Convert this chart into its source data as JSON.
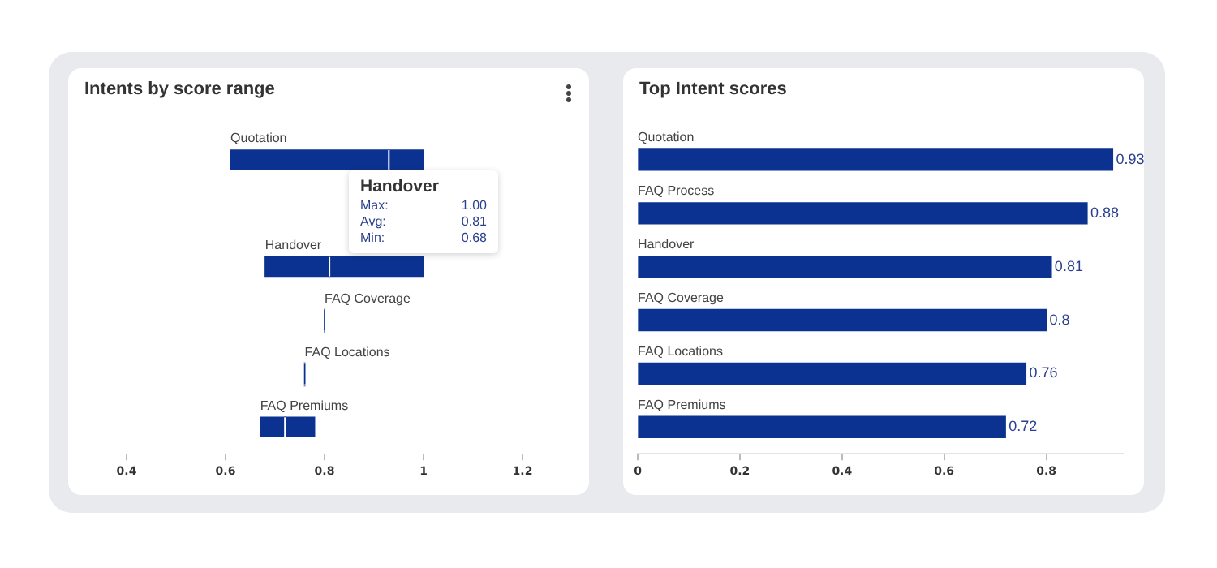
{
  "chart_data": [
    {
      "type": "bar",
      "title": "Intents by score range",
      "orientation": "horizontal",
      "categories": [
        "Quotation",
        null,
        "Handover",
        "FAQ Coverage",
        "FAQ Locations",
        "FAQ Premiums"
      ],
      "series": [
        {
          "color": "#0b3290",
          "base": [
            0.61,
            null,
            0.68,
            0.8,
            0.76,
            0.67
          ],
          "values": [
            0.32,
            null,
            0.13,
            0,
            0,
            0.05
          ]
        },
        {
          "color": "#0b3290",
          "base": [
            0.93,
            null,
            0.81,
            null,
            null,
            0.72
          ],
          "values": [
            0.07,
            null,
            0.19,
            null,
            null,
            0.06
          ]
        }
      ],
      "xlim": [
        0.4,
        1.2
      ],
      "xticks": [
        0.4,
        0.6,
        0.8,
        1,
        1.2
      ],
      "tick_labels": "x",
      "annotations": [
        "Handover",
        "Max:",
        "1.00",
        "Avg:",
        "0.81",
        "Min:",
        "0.68"
      ]
    },
    {
      "type": "bar",
      "title": "Top Intent scores",
      "orientation": "horizontal",
      "categories": [
        "Quotation",
        "FAQ Process",
        "Handover",
        "FAQ Coverage",
        "FAQ Locations",
        "FAQ Premiums"
      ],
      "color": "#0b3290",
      "values": [
        0.93,
        0.88,
        0.81,
        0.8,
        0.76,
        0.72
      ],
      "xlim": [
        0,
        0.95
      ],
      "xticks": [
        0,
        0.2,
        0.4,
        0.6,
        0.8
      ],
      "tick_labels": "x",
      "data_labels": true
    }
  ]
}
